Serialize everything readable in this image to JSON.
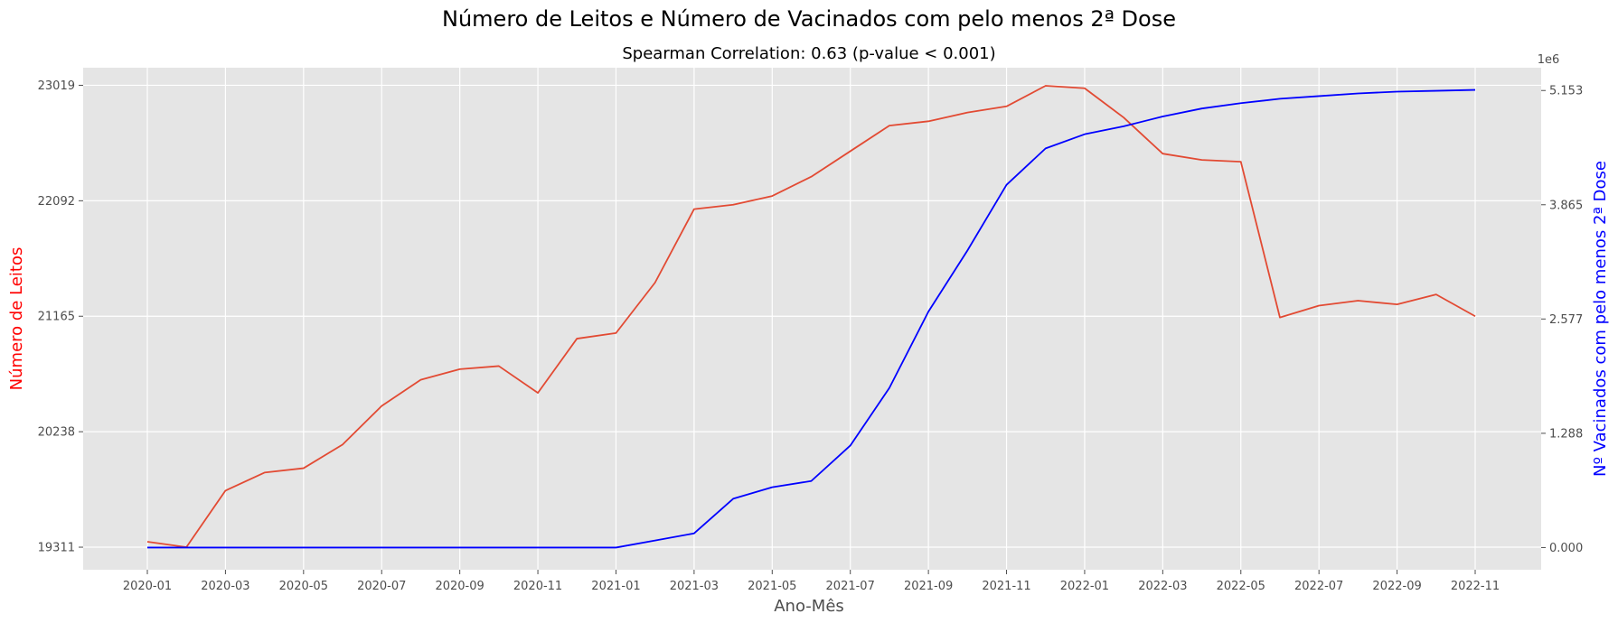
{
  "chart_data": {
    "type": "line",
    "title": "Número de Leitos e Número de Vacinados com pelo menos 2ª Dose",
    "subtitle": "Spearman Correlation: 0.63 (p-value < 0.001)",
    "xlabel": "Ano-Mês",
    "ylabel_left": "Número de Leitos",
    "ylabel_right": "Nº Vacinados com pelo menos 2ª Dose",
    "right_axis_multiplier": "1e6",
    "x_tick_labels": [
      "2020-01",
      "2020-03",
      "2020-05",
      "2020-07",
      "2020-09",
      "2020-11",
      "2021-01",
      "2021-03",
      "2021-05",
      "2021-07",
      "2021-09",
      "2021-11",
      "2022-01",
      "2022-03",
      "2022-05",
      "2022-07",
      "2022-09",
      "2022-11"
    ],
    "left_ticks": [
      "19311",
      "20238",
      "21165",
      "22092",
      "23019"
    ],
    "right_ticks": [
      "0.000",
      "1.288",
      "2.577",
      "3.865",
      "5.153"
    ],
    "ylim_left": [
      19130,
      23160
    ],
    "ylim_right": [
      -0.25,
      5.41
    ],
    "grid": true,
    "colors": {
      "background": "#e5e5e5",
      "leitos": "#e24a33",
      "vacinados": "#0000ff",
      "left_label": "#ff0000",
      "right_label": "#0000ff"
    },
    "x": [
      "2020-01",
      "2020-02",
      "2020-03",
      "2020-04",
      "2020-05",
      "2020-06",
      "2020-07",
      "2020-08",
      "2020-09",
      "2020-10",
      "2020-11",
      "2020-12",
      "2021-01",
      "2021-02",
      "2021-03",
      "2021-04",
      "2021-05",
      "2021-06",
      "2021-07",
      "2021-08",
      "2021-09",
      "2021-10",
      "2021-11",
      "2021-12",
      "2022-01",
      "2022-02",
      "2022-03",
      "2022-04",
      "2022-05",
      "2022-06",
      "2022-07",
      "2022-08",
      "2022-09",
      "2022-10",
      "2022-11"
    ],
    "series": [
      {
        "axis": "left",
        "values": [
          19355,
          19311,
          19765,
          19910,
          19945,
          20135,
          20445,
          20655,
          20740,
          20765,
          20550,
          20985,
          21030,
          21435,
          22025,
          22060,
          22130,
          22285,
          22490,
          22695,
          22730,
          22800,
          22850,
          23015,
          22995,
          22760,
          22470,
          22420,
          22405,
          21155,
          21250,
          21290,
          21260,
          21340,
          21165
        ]
      },
      {
        "axis": "right",
        "values": [
          0,
          0,
          0,
          0,
          0,
          0,
          0,
          0,
          0,
          0,
          0,
          0,
          0,
          0.08,
          0.16,
          0.55,
          0.68,
          0.75,
          1.15,
          1.8,
          2.66,
          3.35,
          4.09,
          4.5,
          4.66,
          4.75,
          4.86,
          4.95,
          5.01,
          5.06,
          5.09,
          5.12,
          5.14,
          5.15,
          5.16
        ]
      }
    ]
  }
}
